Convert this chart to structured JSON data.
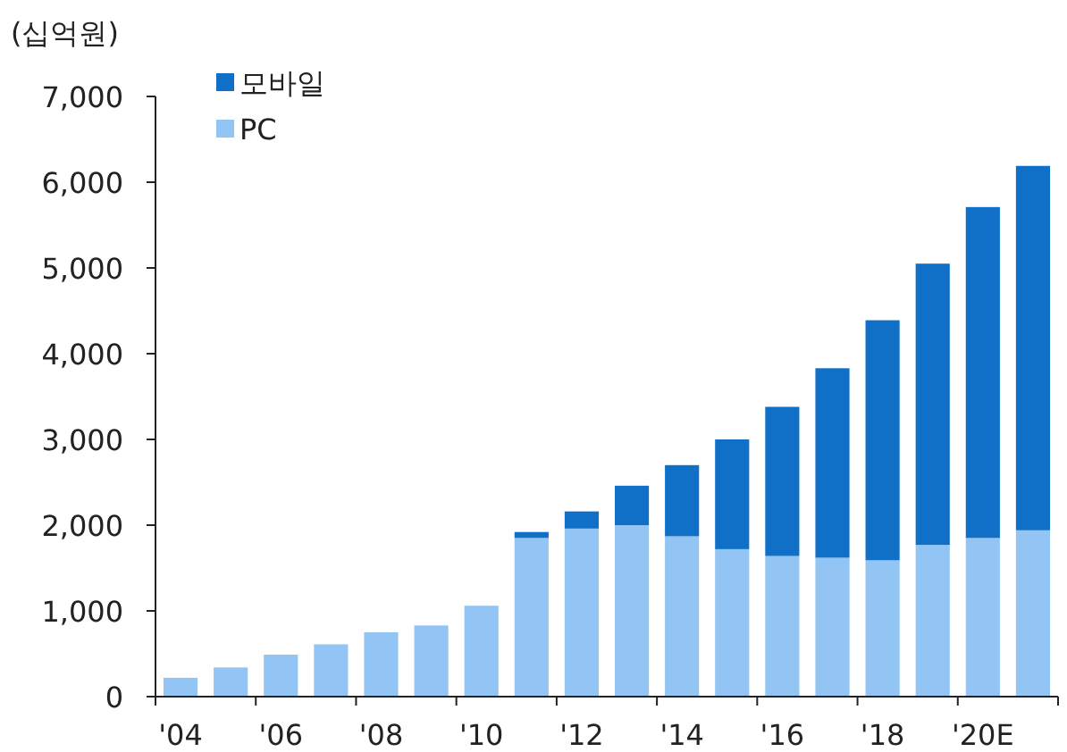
{
  "chart_data": {
    "type": "bar",
    "stacked": true,
    "ylabel": "(십억원)",
    "categories": [
      "'04",
      null,
      "'06",
      null,
      "'08",
      null,
      "'10",
      null,
      "'12",
      null,
      "'14",
      null,
      "'16",
      null,
      "'18",
      null,
      "'20E",
      null
    ],
    "series": [
      {
        "name": "PC",
        "color": "#92c5f4",
        "values": [
          220,
          340,
          490,
          610,
          750,
          830,
          1060,
          1850,
          1960,
          2000,
          1870,
          1720,
          1640,
          1620,
          1590,
          1770,
          1850,
          1940
        ]
      },
      {
        "name": "모바일",
        "color": "#1070c8",
        "values": [
          null,
          null,
          null,
          null,
          null,
          null,
          null,
          70,
          200,
          460,
          830,
          1280,
          1740,
          2210,
          2800,
          3280,
          3860,
          4250
        ]
      }
    ],
    "ylim": [
      0,
      7000
    ],
    "yticks": [
      {
        "value": 0,
        "label": "0"
      },
      {
        "value": 1000,
        "label": "1,000"
      },
      {
        "value": 2000,
        "label": "2,000"
      },
      {
        "value": 3000,
        "label": "3,000"
      },
      {
        "value": 4000,
        "label": "4,000"
      },
      {
        "value": 5000,
        "label": "5,000"
      },
      {
        "value": 6000,
        "label": "6,000"
      },
      {
        "value": 7000,
        "label": "7,000"
      }
    ],
    "grid": false,
    "legend": "top left"
  }
}
